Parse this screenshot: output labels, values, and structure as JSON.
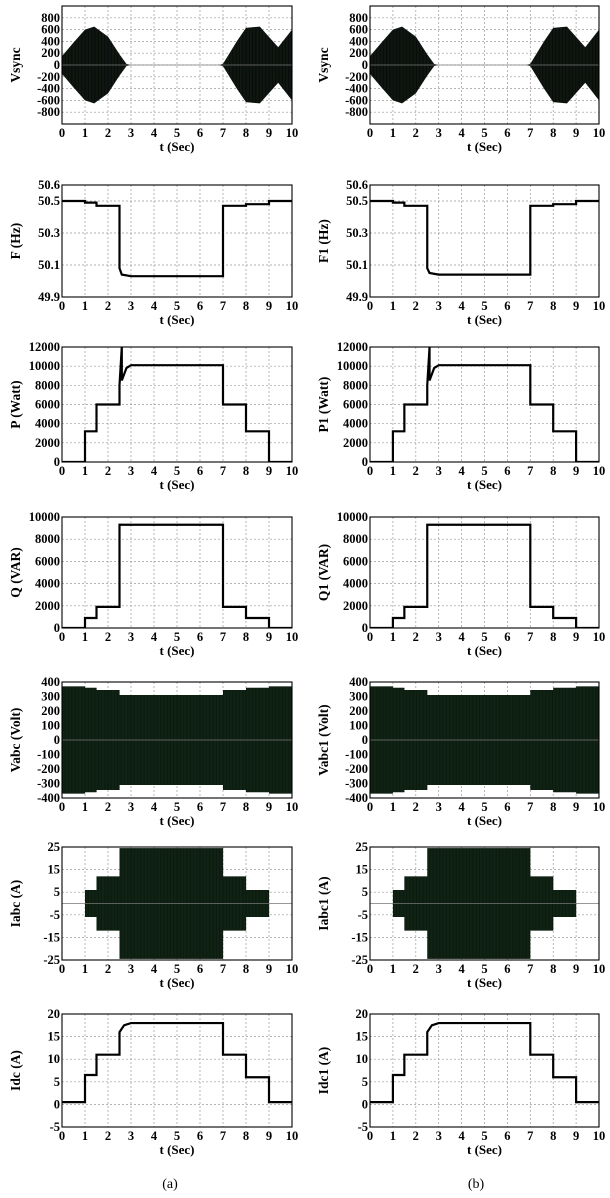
{
  "captions": {
    "left": "(a)",
    "right": "(b)"
  },
  "chart_data": [
    {
      "id": "a1",
      "type": "area",
      "ylabel": "Vsync",
      "xlabel": "t (Sec)",
      "xlim": [
        0,
        10
      ],
      "ylim": [
        -1000,
        1000
      ],
      "xticks": [
        0,
        1,
        2,
        3,
        4,
        5,
        6,
        7,
        8,
        9,
        10
      ],
      "yticks": [
        -800,
        -600,
        -400,
        -200,
        0,
        200,
        400,
        600,
        800
      ],
      "yticklabels": [
        "-800",
        "-600",
        "-400",
        "-200",
        "0",
        "200",
        "400",
        "600",
        "800"
      ],
      "grid": true,
      "series": [
        {
          "x": [
            0,
            0.5,
            1,
            1.4,
            2,
            2.5,
            2.8,
            3,
            4,
            5,
            6,
            6.5,
            6.8,
            7,
            7.6,
            8,
            8.6,
            9.4,
            10
          ],
          "y": [
            150,
            380,
            600,
            650,
            480,
            180,
            20,
            0,
            0,
            0,
            0,
            0,
            0,
            20,
            400,
            630,
            650,
            300,
            600
          ]
        }
      ]
    },
    {
      "id": "b1",
      "type": "area",
      "ylabel": "Vsync",
      "xlabel": "t (Sec)",
      "xlim": [
        0,
        10
      ],
      "ylim": [
        -1000,
        1000
      ],
      "xticks": [
        0,
        1,
        2,
        3,
        4,
        5,
        6,
        7,
        8,
        9,
        10
      ],
      "yticks": [
        -800,
        -600,
        -400,
        -200,
        0,
        200,
        400,
        600,
        800
      ],
      "yticklabels": [
        "-800",
        "-600",
        "-400",
        "-200",
        "0",
        "200",
        "400",
        "600",
        "800"
      ],
      "grid": true,
      "series": [
        {
          "x": [
            0,
            0.5,
            1,
            1.4,
            2,
            2.5,
            2.8,
            3,
            4,
            5,
            6,
            6.5,
            6.8,
            7,
            7.6,
            8,
            8.6,
            9.4,
            10
          ],
          "y": [
            150,
            380,
            600,
            650,
            480,
            180,
            20,
            0,
            0,
            0,
            0,
            0,
            0,
            20,
            400,
            630,
            650,
            300,
            600
          ]
        }
      ]
    },
    {
      "id": "a2",
      "type": "line",
      "ylabel": "F (Hz)",
      "xlabel": "t (Sec)",
      "xlim": [
        0,
        10
      ],
      "ylim": [
        49.9,
        50.6
      ],
      "xticks": [
        0,
        1,
        2,
        3,
        4,
        5,
        6,
        7,
        8,
        9,
        10
      ],
      "yticks": [
        49.9,
        50.1,
        50.3,
        50.5,
        50.6
      ],
      "yticklabels": [
        "49.9",
        "50.1",
        "50.3",
        "50.5",
        "50.6"
      ],
      "grid": true,
      "series": [
        {
          "x": [
            0,
            1,
            1,
            1.5,
            1.5,
            2.5,
            2.5,
            2.6,
            3,
            7,
            7,
            8,
            8,
            9,
            9,
            10
          ],
          "y": [
            50.5,
            50.5,
            50.49,
            50.49,
            50.47,
            50.47,
            50.08,
            50.04,
            50.03,
            50.03,
            50.47,
            50.47,
            50.48,
            50.48,
            50.5,
            50.5
          ]
        }
      ]
    },
    {
      "id": "b2",
      "type": "line",
      "ylabel": "F1 (Hz)",
      "xlabel": "t (Sec)",
      "xlim": [
        0,
        10
      ],
      "ylim": [
        49.9,
        50.6
      ],
      "xticks": [
        0,
        1,
        2,
        3,
        4,
        5,
        6,
        7,
        8,
        9,
        10
      ],
      "yticks": [
        49.9,
        50.1,
        50.3,
        50.5,
        50.6
      ],
      "yticklabels": [
        "49.9",
        "50.1",
        "50.3",
        "50.5",
        "50.6"
      ],
      "grid": true,
      "series": [
        {
          "x": [
            0,
            1,
            1,
            1.5,
            1.5,
            2.5,
            2.5,
            2.6,
            3,
            7,
            7,
            8,
            8,
            9,
            9,
            10
          ],
          "y": [
            50.5,
            50.5,
            50.49,
            50.49,
            50.47,
            50.47,
            50.08,
            50.05,
            50.04,
            50.04,
            50.47,
            50.47,
            50.48,
            50.48,
            50.5,
            50.5
          ]
        }
      ]
    },
    {
      "id": "a3",
      "type": "line",
      "ylabel": "P (Watt)",
      "xlabel": "t (Sec)",
      "xlim": [
        0,
        10
      ],
      "ylim": [
        0,
        12000
      ],
      "xticks": [
        0,
        1,
        2,
        3,
        4,
        5,
        6,
        7,
        8,
        9,
        10
      ],
      "yticks": [
        0,
        2000,
        4000,
        6000,
        8000,
        10000,
        12000
      ],
      "yticklabels": [
        "0",
        "2000",
        "4000",
        "6000",
        "8000",
        "10000",
        "12000"
      ],
      "grid": true,
      "series": [
        {
          "x": [
            0,
            1,
            1,
            1.5,
            1.5,
            2.5,
            2.5,
            2.6,
            2.6,
            2.8,
            3,
            7,
            7,
            8,
            8,
            9,
            9,
            10
          ],
          "y": [
            0,
            0,
            3200,
            3200,
            6000,
            6000,
            8000,
            12000,
            8500,
            9800,
            10100,
            10100,
            6000,
            6000,
            3200,
            3200,
            0,
            0
          ]
        }
      ]
    },
    {
      "id": "b3",
      "type": "line",
      "ylabel": "P1 (Watt)",
      "xlabel": "t (Sec)",
      "xlim": [
        0,
        10
      ],
      "ylim": [
        0,
        12000
      ],
      "xticks": [
        0,
        1,
        2,
        3,
        4,
        5,
        6,
        7,
        8,
        9,
        10
      ],
      "yticks": [
        0,
        2000,
        4000,
        6000,
        8000,
        10000,
        12000
      ],
      "yticklabels": [
        "0",
        "2000",
        "4000",
        "6000",
        "8000",
        "10000",
        "12000"
      ],
      "grid": true,
      "series": [
        {
          "x": [
            0,
            1,
            1,
            1.5,
            1.5,
            2.5,
            2.5,
            2.6,
            2.6,
            2.8,
            3,
            7,
            7,
            8,
            8,
            9,
            9,
            10
          ],
          "y": [
            0,
            0,
            3200,
            3200,
            6000,
            6000,
            8000,
            12000,
            8500,
            9800,
            10100,
            10100,
            6000,
            6000,
            3200,
            3200,
            0,
            0
          ]
        }
      ]
    },
    {
      "id": "a4",
      "type": "line",
      "ylabel": "Q (VAR)",
      "xlabel": "t (Sec)",
      "xlim": [
        0,
        10
      ],
      "ylim": [
        0,
        10000
      ],
      "xticks": [
        0,
        1,
        2,
        3,
        4,
        5,
        6,
        7,
        8,
        9,
        10
      ],
      "yticks": [
        0,
        2000,
        4000,
        6000,
        8000,
        10000
      ],
      "yticklabels": [
        "0",
        "2000",
        "4000",
        "6000",
        "8000",
        "10000"
      ],
      "grid": true,
      "series": [
        {
          "x": [
            0,
            1,
            1,
            1.5,
            1.5,
            2.5,
            2.5,
            7,
            7,
            8,
            8,
            9,
            9,
            10
          ],
          "y": [
            0,
            0,
            900,
            900,
            1900,
            1900,
            9300,
            9300,
            1900,
            1900,
            900,
            900,
            0,
            0
          ]
        }
      ]
    },
    {
      "id": "b4",
      "type": "line",
      "ylabel": "Q1 (VAR)",
      "xlabel": "t (Sec)",
      "xlim": [
        0,
        10
      ],
      "ylim": [
        0,
        10000
      ],
      "xticks": [
        0,
        1,
        2,
        3,
        4,
        5,
        6,
        7,
        8,
        9,
        10
      ],
      "yticks": [
        0,
        2000,
        4000,
        6000,
        8000,
        10000
      ],
      "yticklabels": [
        "0",
        "2000",
        "4000",
        "6000",
        "8000",
        "10000"
      ],
      "grid": true,
      "series": [
        {
          "x": [
            0,
            1,
            1,
            1.5,
            1.5,
            2.5,
            2.5,
            7,
            7,
            8,
            8,
            9,
            9,
            10
          ],
          "y": [
            0,
            0,
            900,
            900,
            1900,
            1900,
            9300,
            9300,
            1900,
            1900,
            900,
            900,
            0,
            0
          ]
        }
      ]
    },
    {
      "id": "a5",
      "type": "area",
      "ylabel": "Vabc (Volt)",
      "xlabel": "t (Sec)",
      "xlim": [
        0,
        10
      ],
      "ylim": [
        -400,
        400
      ],
      "xticks": [
        0,
        1,
        2,
        3,
        4,
        5,
        6,
        7,
        8,
        9,
        10
      ],
      "yticks": [
        -400,
        -300,
        -200,
        -100,
        0,
        100,
        200,
        300,
        400
      ],
      "yticklabels": [
        "-400",
        "-300",
        "-200",
        "-100",
        "0",
        "100",
        "200",
        "300",
        "400"
      ],
      "grid": true,
      "series": [
        {
          "x": [
            0,
            1,
            1,
            1.5,
            1.5,
            2.5,
            2.5,
            7,
            7,
            8,
            8,
            9,
            9,
            10
          ],
          "y": [
            370,
            370,
            360,
            360,
            345,
            345,
            310,
            310,
            345,
            345,
            360,
            360,
            370,
            370
          ]
        }
      ]
    },
    {
      "id": "b5",
      "type": "area",
      "ylabel": "Vabc1 (Volt)",
      "xlabel": "t (Sec)",
      "xlim": [
        0,
        10
      ],
      "ylim": [
        -400,
        400
      ],
      "xticks": [
        0,
        1,
        2,
        3,
        4,
        5,
        6,
        7,
        8,
        9,
        10
      ],
      "yticks": [
        -400,
        -300,
        -200,
        -100,
        0,
        100,
        200,
        300,
        400
      ],
      "yticklabels": [
        "-400",
        "-300",
        "-200",
        "-100",
        "0",
        "100",
        "200",
        "300",
        "400"
      ],
      "grid": true,
      "series": [
        {
          "x": [
            0,
            1,
            1,
            1.5,
            1.5,
            2.5,
            2.5,
            7,
            7,
            8,
            8,
            9,
            9,
            10
          ],
          "y": [
            370,
            370,
            360,
            360,
            345,
            345,
            310,
            310,
            345,
            345,
            360,
            360,
            370,
            370
          ]
        }
      ]
    },
    {
      "id": "a6",
      "type": "area",
      "ylabel": "Iabc (A)",
      "xlabel": "t (Sec)",
      "xlim": [
        0,
        10
      ],
      "ylim": [
        -25,
        25
      ],
      "xticks": [
        0,
        1,
        2,
        3,
        4,
        5,
        6,
        7,
        8,
        9,
        10
      ],
      "yticks": [
        -25,
        -15,
        -5,
        5,
        15,
        25
      ],
      "yticklabels": [
        "-25",
        "-15",
        "-5",
        "5",
        "15",
        "25"
      ],
      "grid": true,
      "series": [
        {
          "x": [
            0,
            1,
            1,
            1.5,
            1.5,
            2.5,
            2.5,
            7,
            7,
            8,
            8,
            9,
            9,
            10
          ],
          "y": [
            0,
            0,
            6,
            6,
            12,
            12,
            24.5,
            24.5,
            12,
            12,
            6,
            6,
            0,
            0
          ]
        }
      ]
    },
    {
      "id": "b6",
      "type": "area",
      "ylabel": "Iabc1 (A)",
      "xlabel": "t (Sec)",
      "xlim": [
        0,
        10
      ],
      "ylim": [
        -25,
        25
      ],
      "xticks": [
        0,
        1,
        2,
        3,
        4,
        5,
        6,
        7,
        8,
        9,
        10
      ],
      "yticks": [
        -25,
        -15,
        -5,
        5,
        15,
        25
      ],
      "yticklabels": [
        "-25",
        "-15",
        "-5",
        "5",
        "15",
        "25"
      ],
      "grid": true,
      "series": [
        {
          "x": [
            0,
            1,
            1,
            1.5,
            1.5,
            2.5,
            2.5,
            7,
            7,
            8,
            8,
            9,
            9,
            10
          ],
          "y": [
            0,
            0,
            6,
            6,
            12,
            12,
            24.5,
            24.5,
            12,
            12,
            6,
            6,
            0,
            0
          ]
        }
      ]
    },
    {
      "id": "a7",
      "type": "line",
      "ylabel": "Idc (A)",
      "xlabel": "t (Sec)",
      "xlim": [
        0,
        10
      ],
      "ylim": [
        -5,
        20
      ],
      "xticks": [
        0,
        1,
        2,
        3,
        4,
        5,
        6,
        7,
        8,
        9,
        10
      ],
      "yticks": [
        -5,
        0,
        5,
        10,
        15,
        20
      ],
      "yticklabels": [
        "-5",
        "0",
        "5",
        "10",
        "15",
        "20"
      ],
      "grid": true,
      "series": [
        {
          "x": [
            0,
            1,
            1,
            1.5,
            1.5,
            2.5,
            2.5,
            2.7,
            3,
            7,
            7,
            8,
            8,
            9,
            9,
            10
          ],
          "y": [
            0.5,
            0.5,
            6.5,
            6.5,
            11,
            11,
            16,
            17.5,
            18,
            18,
            11,
            11,
            6,
            6,
            0.5,
            0.5
          ]
        }
      ]
    },
    {
      "id": "b7",
      "type": "line",
      "ylabel": "Idc1 (A)",
      "xlabel": "t (Sec)",
      "xlim": [
        0,
        10
      ],
      "ylim": [
        -5,
        20
      ],
      "xticks": [
        0,
        1,
        2,
        3,
        4,
        5,
        6,
        7,
        8,
        9,
        10
      ],
      "yticks": [
        -5,
        0,
        5,
        10,
        15,
        20
      ],
      "yticklabels": [
        "-5",
        "0",
        "5",
        "10",
        "15",
        "20"
      ],
      "grid": true,
      "series": [
        {
          "x": [
            0,
            1,
            1,
            1.5,
            1.5,
            2.5,
            2.5,
            2.7,
            3,
            7,
            7,
            8,
            8,
            9,
            9,
            10
          ],
          "y": [
            0.5,
            0.5,
            6.5,
            6.5,
            11,
            11,
            16,
            17.5,
            18,
            18,
            11,
            11,
            6,
            6,
            0.5,
            0.5
          ]
        }
      ]
    }
  ]
}
